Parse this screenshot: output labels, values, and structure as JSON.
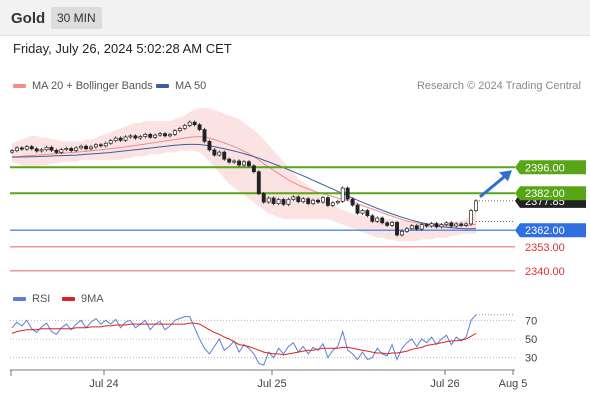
{
  "header": {
    "title": "Gold",
    "interval": "30 MIN"
  },
  "timestamp": "Friday, July 26, 2024 5:02:28 AM CET",
  "legend": {
    "ma20": "MA 20 + Bollinger Bands",
    "ma50": "MA 50",
    "ma20_color": "#f28b8b",
    "ma50_color": "#3a5fa0",
    "copyright": "Research © 2024 Trading Central"
  },
  "rsi_legend": {
    "rsi": "RSI",
    "ma9": "9MA",
    "rsi_color": "#5b7fd6",
    "ma9_color": "#e02020"
  },
  "chart_data": [
    {
      "type": "candlestick",
      "ylim": [
        2334,
        2434
      ],
      "x_labels": [
        "Jul 24",
        "Jul 25",
        "Jul 26",
        "Aug 5"
      ],
      "levels": [
        {
          "value": 2396.0,
          "label": "2396.00",
          "color": "#58a618",
          "kind": "resistance"
        },
        {
          "value": 2382.0,
          "label": "2382.00",
          "color": "#58a618",
          "kind": "resistance"
        },
        {
          "value": 2362.0,
          "label": "2362.00",
          "color": "#2f6fe0",
          "kind": "pivot"
        },
        {
          "value": 2353.0,
          "label": "2353.00",
          "color": "#e03030",
          "kind": "support"
        },
        {
          "value": 2340.0,
          "label": "2340.00",
          "color": "#e03030",
          "kind": "support"
        }
      ],
      "current_price_label": "2377.85",
      "close": [
        2405.0,
        2406.5,
        2405.8,
        2407.2,
        2406.0,
        2404.8,
        2405.5,
        2406.8,
        2405.2,
        2404.0,
        2405.6,
        2406.2,
        2405.0,
        2406.5,
        2407.4,
        2406.0,
        2407.0,
        2408.2,
        2407.6,
        2409.0,
        2410.4,
        2411.8,
        2410.6,
        2412.4,
        2413.0,
        2411.8,
        2412.6,
        2413.8,
        2412.2,
        2413.4,
        2414.2,
        2413.0,
        2413.8,
        2415.8,
        2417.0,
        2418.6,
        2420.4,
        2419.0,
        2416.4,
        2410.0,
        2405.4,
        2402.6,
        2404.2,
        2400.4,
        2398.8,
        2399.4,
        2397.2,
        2399.0,
        2396.8,
        2393.6,
        2381.8,
        2377.2,
        2379.4,
        2376.4,
        2378.6,
        2376.0,
        2378.6,
        2380.0,
        2377.4,
        2379.0,
        2376.4,
        2378.2,
        2377.2,
        2379.6,
        2375.4,
        2376.8,
        2377.6,
        2384.8,
        2378.8,
        2375.6,
        2371.2,
        2372.6,
        2369.8,
        2366.8,
        2368.6,
        2366.0,
        2364.6,
        2366.2,
        2359.4,
        2361.4,
        2362.8,
        2364.4,
        2362.6,
        2365.0,
        2364.2,
        2365.6,
        2363.8,
        2365.0,
        2366.0,
        2364.2,
        2365.4,
        2364.6,
        2365.4,
        2372.6,
        2377.85
      ],
      "ma20": [
        2401.6,
        2401.8,
        2402.0,
        2402.2,
        2402.4,
        2402.6,
        2402.8,
        2403.0,
        2403.2,
        2403.4,
        2403.6,
        2403.8,
        2404.0,
        2404.2,
        2404.4,
        2404.6,
        2404.9,
        2405.2,
        2405.5,
        2405.8,
        2406.1,
        2406.4,
        2406.7,
        2407.0,
        2407.4,
        2407.8,
        2408.2,
        2408.6,
        2409.0,
        2409.4,
        2409.8,
        2410.2,
        2410.6,
        2411.0,
        2411.4,
        2411.8,
        2412.2,
        2412.5,
        2412.6,
        2412.4,
        2411.8,
        2411.0,
        2410.1,
        2409.2,
        2408.2,
        2407.2,
        2406.0,
        2404.7,
        2403.3,
        2401.8,
        2400.0,
        2398.0,
        2396.2,
        2394.4,
        2392.6,
        2390.9,
        2389.2,
        2387.8,
        2386.5,
        2385.3,
        2384.3,
        2383.3,
        2382.4,
        2381.7,
        2381.0,
        2380.2,
        2379.4,
        2378.7,
        2378.0,
        2377.2,
        2376.3,
        2375.3,
        2374.4,
        2373.4,
        2372.5,
        2371.5,
        2370.5,
        2369.6,
        2368.6,
        2367.8,
        2367.0,
        2366.5,
        2366.0,
        2365.6,
        2365.3,
        2365.0,
        2364.8,
        2364.6,
        2364.5,
        2364.4,
        2364.4,
        2364.4,
        2364.5,
        2364.8,
        2365.3
      ],
      "ma50": [
        2401.5,
        2401.5,
        2401.6,
        2401.6,
        2401.7,
        2401.8,
        2401.9,
        2402.0,
        2402.1,
        2402.2,
        2402.3,
        2402.4,
        2402.5,
        2402.6,
        2402.8,
        2403.0,
        2403.2,
        2403.4,
        2403.6,
        2403.8,
        2404.0,
        2404.3,
        2404.6,
        2404.9,
        2405.2,
        2405.5,
        2405.8,
        2406.1,
        2406.4,
        2406.7,
        2407.0,
        2407.3,
        2407.6,
        2407.9,
        2408.1,
        2408.3,
        2408.4,
        2408.4,
        2408.3,
        2408.0,
        2407.6,
        2407.1,
        2406.6,
        2406.0,
        2405.4,
        2404.8,
        2404.1,
        2403.4,
        2402.6,
        2401.8,
        2400.9,
        2399.9,
        2398.9,
        2397.9,
        2396.9,
        2395.8,
        2394.7,
        2393.6,
        2392.5,
        2391.4,
        2390.2,
        2389.0,
        2387.8,
        2386.6,
        2385.4,
        2384.2,
        2383.0,
        2381.8,
        2380.6,
        2379.4,
        2378.2,
        2377.1,
        2376.0,
        2374.9,
        2373.8,
        2372.8,
        2371.8,
        2370.8,
        2369.9,
        2369.0,
        2368.2,
        2367.4,
        2366.7,
        2366.0,
        2365.4,
        2364.9,
        2364.4,
        2364.0,
        2363.6,
        2363.3,
        2363.1,
        2362.9,
        2362.8,
        2362.8,
        2362.9
      ],
      "bollinger_upper": [
        2409,
        2410,
        2411,
        2412,
        2413,
        2413,
        2412,
        2412,
        2411,
        2411,
        2410,
        2410,
        2410,
        2410,
        2410,
        2411,
        2411,
        2412,
        2413,
        2414,
        2415,
        2416,
        2417,
        2418,
        2419,
        2420,
        2420,
        2421,
        2421,
        2421,
        2421,
        2421,
        2421,
        2422,
        2423,
        2424,
        2426,
        2427,
        2428,
        2428,
        2428,
        2427,
        2426,
        2425,
        2424,
        2423,
        2422,
        2420,
        2418,
        2416,
        2414,
        2411,
        2408,
        2405,
        2402,
        2399,
        2396,
        2393,
        2390,
        2388,
        2386,
        2384,
        2382,
        2380,
        2378,
        2376,
        2374,
        2373,
        2372,
        2371,
        2370,
        2370,
        2369,
        2369,
        2368,
        2368,
        2368,
        2368,
        2367,
        2367,
        2367,
        2366,
        2366,
        2366,
        2366,
        2366,
        2366,
        2366,
        2366,
        2366,
        2367,
        2367,
        2368,
        2370,
        2372
      ],
      "bollinger_lower": [
        2399,
        2398,
        2397,
        2396,
        2396,
        2396,
        2397,
        2397,
        2398,
        2398,
        2399,
        2399,
        2399,
        2399,
        2400,
        2400,
        2400,
        2400,
        2400,
        2400,
        2400,
        2400,
        2400,
        2401,
        2401,
        2402,
        2402,
        2402,
        2403,
        2403,
        2403,
        2404,
        2404,
        2404,
        2405,
        2405,
        2405,
        2405,
        2404,
        2402,
        2399,
        2396,
        2393,
        2390,
        2387,
        2385,
        2383,
        2381,
        2379,
        2377,
        2375,
        2373,
        2371,
        2370,
        2369,
        2368,
        2368,
        2368,
        2368,
        2368,
        2368,
        2368,
        2368,
        2368,
        2368,
        2367,
        2366,
        2365,
        2364,
        2363,
        2362,
        2361,
        2360,
        2359,
        2358,
        2358,
        2357,
        2357,
        2356,
        2356,
        2356,
        2356,
        2356,
        2357,
        2357,
        2357,
        2358,
        2358,
        2358,
        2359,
        2359,
        2360,
        2360,
        2360,
        2360
      ],
      "forecast_target": 2396.0
    },
    {
      "type": "line",
      "name": "RSI",
      "ylim": [
        20,
        80
      ],
      "levels": [
        70,
        50,
        30
      ],
      "tick_labels": [
        "70",
        "50",
        "30"
      ],
      "rsi": [
        62,
        68,
        64,
        70,
        61,
        57,
        63,
        67,
        58,
        55,
        62,
        66,
        60,
        66,
        70,
        62,
        68,
        72,
        66,
        70,
        66,
        71,
        62,
        68,
        70,
        62,
        66,
        70,
        60,
        66,
        69,
        60,
        64,
        70,
        72,
        74,
        74,
        62,
        50,
        40,
        34,
        42,
        50,
        38,
        42,
        48,
        36,
        44,
        40,
        34,
        24,
        22,
        36,
        30,
        40,
        34,
        42,
        46,
        36,
        42,
        34,
        41,
        38,
        45,
        30,
        38,
        42,
        58,
        38,
        34,
        28,
        36,
        28,
        30,
        40,
        34,
        32,
        44,
        28,
        40,
        46,
        50,
        42,
        50,
        46,
        52,
        44,
        50,
        54,
        44,
        52,
        48,
        52,
        70,
        76
      ],
      "ma9": [
        56,
        58,
        59,
        60,
        60,
        60,
        61,
        61,
        61,
        61,
        61,
        61,
        61,
        62,
        62,
        62,
        63,
        63,
        63,
        64,
        64,
        65,
        65,
        65,
        66,
        66,
        66,
        66,
        66,
        66,
        66,
        66,
        66,
        66,
        66,
        66,
        67,
        67,
        66,
        63,
        60,
        57,
        55,
        52,
        50,
        47,
        44,
        43,
        42,
        40,
        38,
        36,
        35,
        34,
        34,
        33,
        34,
        35,
        36,
        37,
        38,
        38,
        39,
        40,
        40,
        40,
        40,
        41,
        41,
        40,
        39,
        38,
        37,
        36,
        35,
        35,
        34,
        35,
        35,
        36,
        37,
        39,
        40,
        41,
        43,
        44,
        45,
        46,
        47,
        48,
        48,
        49,
        50,
        53,
        56
      ]
    }
  ]
}
